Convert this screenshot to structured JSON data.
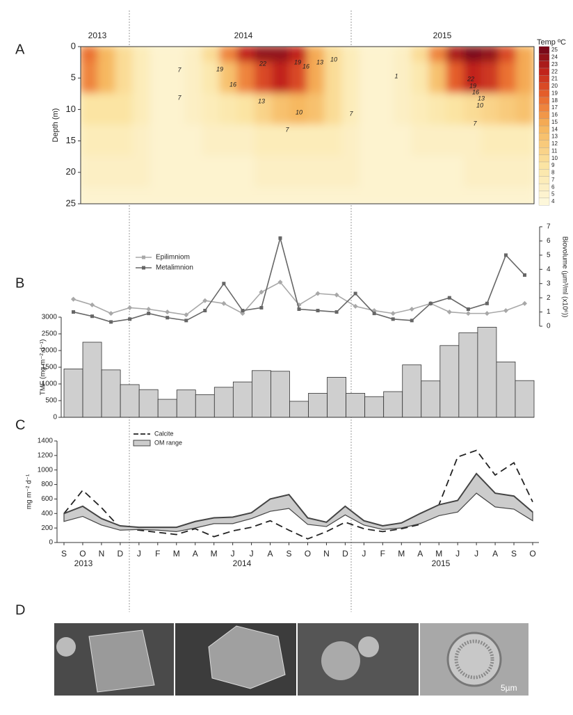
{
  "chart_data": [
    {
      "type": "heatmap",
      "panel_label": "A",
      "ylabel": "Depth (m)",
      "years": [
        "2013",
        "2014",
        "2015"
      ],
      "categories": [
        null,
        null,
        null,
        null,
        null,
        null,
        null,
        null,
        null,
        null,
        null,
        null,
        null,
        null,
        null,
        null,
        null,
        null,
        null,
        null,
        null,
        null,
        null,
        null,
        null,
        null
      ],
      "depths": [
        0,
        5,
        10,
        15,
        20,
        25
      ],
      "values": [
        [
          18,
          14,
          10,
          7,
          5,
          5,
          6,
          10,
          17,
          22,
          24,
          24,
          22,
          15,
          10,
          7,
          5,
          5,
          6,
          10,
          17,
          23,
          25,
          24,
          20,
          15
        ],
        [
          17,
          14,
          10,
          7,
          5,
          5,
          6,
          8,
          13,
          17,
          20,
          22,
          20,
          15,
          10,
          7,
          5,
          5,
          6,
          8,
          13,
          19,
          22,
          21,
          18,
          15
        ],
        [
          9,
          9,
          9,
          7,
          5,
          5,
          6,
          7,
          8,
          9,
          11,
          13,
          14,
          13,
          10,
          7,
          5,
          5,
          6,
          7,
          8,
          9,
          10,
          11,
          12,
          13
        ],
        [
          7,
          7,
          7,
          6,
          5,
          5,
          5,
          6,
          6,
          6,
          7,
          7,
          7,
          7,
          7,
          6,
          5,
          5,
          5,
          6,
          6,
          6,
          6,
          7,
          7,
          7
        ],
        [
          6,
          6,
          6,
          6,
          5,
          5,
          5,
          5,
          5,
          5,
          6,
          6,
          6,
          6,
          6,
          6,
          5,
          5,
          5,
          5,
          5,
          5,
          6,
          6,
          6,
          6
        ],
        [
          5,
          5,
          5,
          5,
          5,
          5,
          5,
          5,
          5,
          5,
          5,
          5,
          5,
          5,
          5,
          5,
          5,
          5,
          5,
          5,
          5,
          5,
          5,
          5,
          5,
          5
        ]
      ],
      "ylim": [
        0,
        25
      ],
      "y_inverted": true,
      "yticks": [
        0,
        5,
        10,
        15,
        20,
        25
      ],
      "colorbar_label": "Temp ºC",
      "clim": [
        4,
        25
      ],
      "cticks": [
        4,
        5,
        6,
        7,
        8,
        9,
        10,
        11,
        12,
        13,
        14,
        15,
        16,
        17,
        18,
        19,
        20,
        21,
        22,
        23,
        24,
        25
      ],
      "contour_labels": [
        "7",
        "19",
        "22",
        "19",
        "16",
        "13",
        "10",
        "16",
        "7",
        "13",
        "10",
        "7",
        "7",
        "1",
        "22",
        "19",
        "16",
        "13",
        "10",
        "7"
      ]
    },
    {
      "type": "bar",
      "panel_label": "B",
      "ylabel": "TMF (mg m⁻² d⁻¹)",
      "y2label": "Biovolume (µm³/ml (x10⁶))",
      "categories": [
        null,
        null,
        null,
        null,
        null,
        null,
        null,
        null,
        null,
        null,
        null,
        null,
        null,
        null,
        null,
        null,
        null,
        null,
        null,
        null,
        null,
        null,
        null,
        null,
        null
      ],
      "values": [
        1450,
        2250,
        1420,
        980,
        830,
        540,
        820,
        680,
        900,
        1060,
        1400,
        1380,
        480,
        720,
        1200,
        720,
        620,
        770,
        1570,
        1090,
        2150,
        2530,
        2700,
        1660,
        1100
      ],
      "color": "#cfcfcf",
      "ylim": [
        0,
        3000
      ],
      "yticks": [
        0,
        500,
        1000,
        1500,
        2000,
        2500,
        3000
      ],
      "y2lim": [
        0,
        7
      ],
      "y2ticks": [
        0,
        1,
        2,
        3,
        4,
        5,
        6,
        7
      ],
      "series": [
        {
          "name": "Epilimniom",
          "color": "#a8a8a8",
          "axis": "y2",
          "values": [
            1.9,
            1.5,
            0.9,
            1.3,
            1.2,
            1.0,
            0.8,
            1.8,
            1.6,
            0.9,
            2.4,
            3.1,
            1.5,
            2.3,
            2.2,
            1.4,
            1.1,
            0.9,
            1.2,
            1.6,
            1.0,
            0.9,
            0.9,
            1.1,
            1.6
          ]
        },
        {
          "name": "Metalimnion",
          "color": "#666666",
          "axis": "y2",
          "values": [
            1.0,
            0.7,
            0.3,
            0.5,
            0.9,
            0.6,
            0.4,
            1.1,
            3.0,
            1.1,
            1.3,
            6.2,
            1.2,
            1.1,
            1.0,
            2.3,
            0.9,
            0.5,
            0.4,
            1.6,
            2.0,
            1.2,
            1.6,
            5.0,
            3.6
          ]
        }
      ]
    },
    {
      "type": "line",
      "panel_label": "C",
      "ylabel": "mg m⁻² d⁻¹",
      "categories": [
        "S",
        "O",
        "N",
        "D",
        "J",
        "F",
        "M",
        "A",
        "M",
        "J",
        "J",
        "A",
        "S",
        "O",
        "N",
        "D",
        "J",
        "F",
        "M",
        "A",
        "M",
        "J",
        "J",
        "A",
        "S",
        "O"
      ],
      "year_labels": [
        "2013",
        "2014",
        "2015"
      ],
      "ylim": [
        0,
        1400
      ],
      "yticks": [
        0,
        200,
        400,
        600,
        800,
        1000,
        1200,
        1400
      ],
      "series": [
        {
          "name": "Calcite",
          "color": "#222222",
          "dashed": true,
          "values": [
            400,
            720,
            480,
            200,
            170,
            140,
            110,
            190,
            80,
            160,
            210,
            300,
            170,
            50,
            150,
            280,
            190,
            150,
            190,
            250,
            520,
            1180,
            1270,
            930,
            1100,
            560
          ]
        },
        {
          "name": "OM range",
          "color": "#cccccc",
          "band": true,
          "upper": [
            400,
            500,
            330,
            230,
            210,
            210,
            210,
            290,
            340,
            350,
            410,
            600,
            660,
            340,
            280,
            500,
            300,
            230,
            270,
            400,
            520,
            580,
            950,
            680,
            640,
            420
          ],
          "lower": [
            290,
            360,
            240,
            170,
            180,
            170,
            150,
            200,
            260,
            260,
            330,
            430,
            470,
            250,
            220,
            380,
            240,
            180,
            200,
            260,
            370,
            420,
            680,
            490,
            460,
            300
          ]
        }
      ]
    }
  ],
  "panel_d": {
    "label": "D",
    "scale_bar": "5µm"
  }
}
